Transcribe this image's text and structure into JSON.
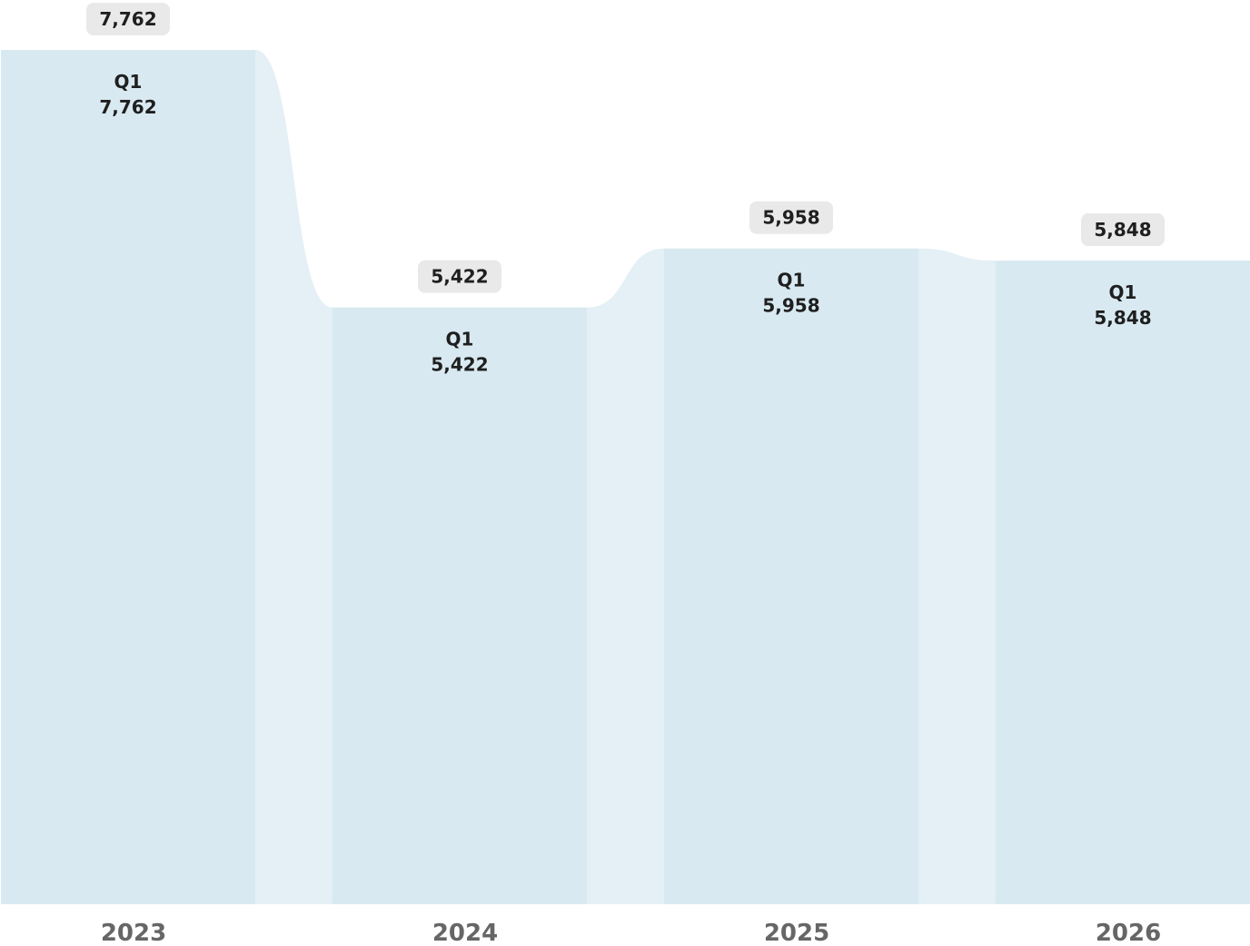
{
  "chart_data": {
    "type": "bar",
    "categories": [
      "2023",
      "2024",
      "2025",
      "2026"
    ],
    "series": [
      {
        "name": "Q1",
        "values": [
          7762,
          5422,
          5958,
          5848
        ]
      }
    ],
    "totals": [
      7762,
      5422,
      5958,
      5848
    ],
    "total_labels": [
      "7,762",
      "5,422",
      "5,958",
      "5,848"
    ],
    "segment_labels": [
      {
        "series": "Q1",
        "value": "7,762"
      },
      {
        "series": "Q1",
        "value": "5,422"
      },
      {
        "series": "Q1",
        "value": "5,958"
      },
      {
        "series": "Q1",
        "value": "5,848"
      }
    ],
    "title": "",
    "xlabel": "",
    "ylabel": "",
    "ylim": [
      0,
      7762
    ],
    "grid": false,
    "legend": "none",
    "colors": {
      "bar": "#d8e9f1",
      "connector": "#e4f0f6",
      "pill": "#e9e9e9",
      "label": "#1f1f1f",
      "axis_label": "#666666"
    }
  }
}
